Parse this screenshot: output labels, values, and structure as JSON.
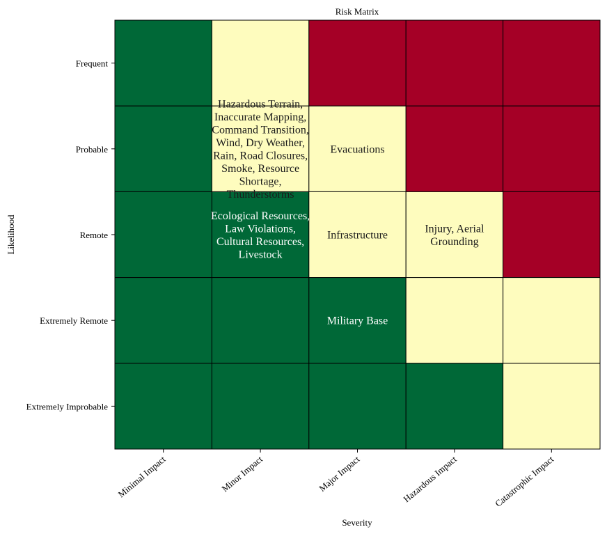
{
  "chart_data": {
    "type": "heatmap",
    "title": "Risk Matrix",
    "xlabel": "Severity",
    "ylabel": "Likelihood",
    "x_categories": [
      "Minimal Impact",
      "Minor Impact",
      "Major Impact",
      "Hazardous Impact",
      "Catastrophic Impact"
    ],
    "y_categories": [
      "Frequent",
      "Probable",
      "Remote",
      "Extremely Remote",
      "Extremely Improbable"
    ],
    "levels": {
      "green": "#006837",
      "yellow": "#fefcbe",
      "red": "#a50026"
    },
    "cells": [
      [
        "green",
        "yellow",
        "red",
        "red",
        "red"
      ],
      [
        "green",
        "yellow",
        "yellow",
        "red",
        "red"
      ],
      [
        "green",
        "green",
        "yellow",
        "yellow",
        "red"
      ],
      [
        "green",
        "green",
        "green",
        "yellow",
        "yellow"
      ],
      [
        "green",
        "green",
        "green",
        "green",
        "yellow"
      ]
    ],
    "annotations": [
      {
        "row": 1,
        "col": 1,
        "lines": [
          "Hazardous Terrain,",
          "Inaccurate Mapping,",
          "Command Transition,",
          "Wind, Dry Weather,",
          "Rain, Road Closures,",
          "Smoke, Resource",
          "Shortage,",
          "Thunderstorms"
        ]
      },
      {
        "row": 1,
        "col": 2,
        "lines": [
          "Evacuations"
        ]
      },
      {
        "row": 2,
        "col": 1,
        "lines": [
          "Ecological Resources,",
          "Law Violations,",
          "Cultural Resources,",
          "Livestock"
        ]
      },
      {
        "row": 2,
        "col": 2,
        "lines": [
          "Infrastructure"
        ]
      },
      {
        "row": 2,
        "col": 3,
        "lines": [
          "Injury, Aerial",
          "Grounding"
        ]
      },
      {
        "row": 3,
        "col": 2,
        "lines": [
          "Military Base"
        ]
      }
    ],
    "grid": true,
    "colorbar": false
  }
}
